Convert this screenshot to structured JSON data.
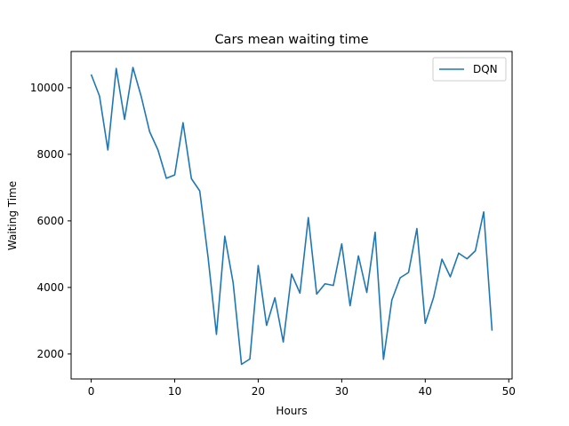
{
  "chart_data": {
    "type": "line",
    "title": "Cars mean waiting time",
    "xlabel": "Hours",
    "ylabel": "Waiting Time",
    "xlim": [
      -2.4,
      50.4
    ],
    "ylim": [
      1250,
      11090
    ],
    "xticks": [
      0,
      10,
      20,
      30,
      40,
      50
    ],
    "yticks": [
      2000,
      4000,
      6000,
      8000,
      10000
    ],
    "grid": false,
    "legend_position": "top-right",
    "series": [
      {
        "name": "DQN",
        "color": "#1f77b4",
        "x": [
          0,
          1,
          2,
          3,
          4,
          5,
          6,
          7,
          8,
          9,
          10,
          11,
          12,
          13,
          14,
          15,
          16,
          17,
          18,
          19,
          20,
          21,
          22,
          23,
          24,
          25,
          26,
          27,
          28,
          29,
          30,
          31,
          32,
          33,
          34,
          35,
          36,
          37,
          38,
          39,
          40,
          41,
          42,
          43,
          44,
          45,
          46,
          47,
          48
        ],
        "y": [
          10400,
          9750,
          8130,
          10580,
          9050,
          10610,
          9730,
          8680,
          8130,
          7280,
          7380,
          8950,
          7270,
          6900,
          4900,
          2590,
          5540,
          4140,
          1690,
          1850,
          4660,
          2860,
          3690,
          2360,
          4400,
          3830,
          6100,
          3800,
          4110,
          4060,
          5310,
          3450,
          4950,
          3850,
          5660,
          1840,
          3620,
          4290,
          4450,
          5770,
          2920,
          3700,
          4850,
          4320,
          5030,
          4860,
          5100,
          6270,
          2700
        ]
      }
    ]
  }
}
